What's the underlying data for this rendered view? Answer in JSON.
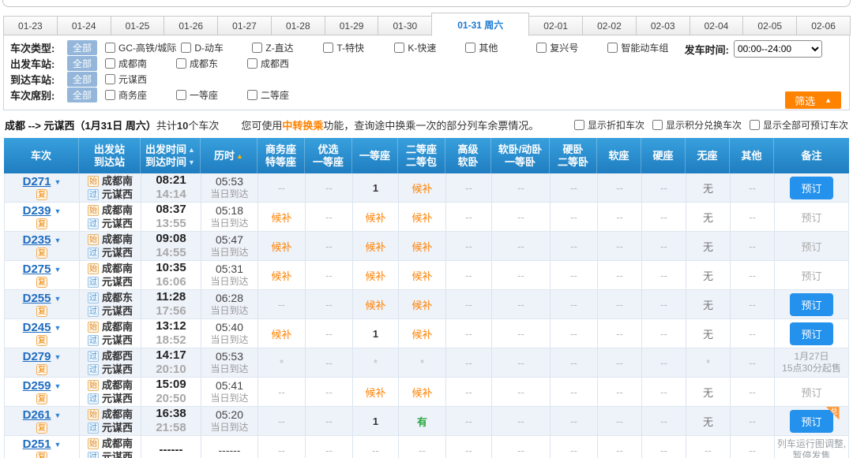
{
  "page": {
    "depart_time_label": "发车时间:",
    "depart_time_value": "00:00--24:00",
    "filter_button": "筛选",
    "filter_button_arrow": "▲"
  },
  "date_tabs": [
    "01-23",
    "01-24",
    "01-25",
    "01-26",
    "01-27",
    "01-28",
    "01-29",
    "01-30",
    "01-31 周六",
    "02-01",
    "02-02",
    "02-03",
    "02-04",
    "02-05",
    "02-06"
  ],
  "selected_tab_index": 8,
  "filters": [
    {
      "label": "车次类型:",
      "all": "全部",
      "options": [
        "GC-高铁/城际",
        "D-动车",
        "Z-直达",
        "T-特快",
        "K-快速",
        "其他",
        "复兴号",
        "智能动车组"
      ]
    },
    {
      "label": "出发车站:",
      "all": "全部",
      "options": [
        "成都南",
        "成都东",
        "成都西"
      ]
    },
    {
      "label": "到达车站:",
      "all": "全部",
      "options": [
        "元谋西"
      ]
    },
    {
      "label": "车次席别:",
      "all": "全部",
      "options": [
        "商务座",
        "一等座",
        "二等座"
      ]
    }
  ],
  "summary": {
    "from": "成都",
    "arrow": " --> ",
    "to": "元谋西",
    "date": "（1月31日 周六）",
    "count_pre": "共计",
    "count": "10",
    "count_post": "个车次",
    "tip_pre": "您可使用",
    "tip_hot": "中转换乘",
    "tip_post": "功能，查询途中换乘一次的部分列车余票情况。",
    "toggles": [
      "显示折扣车次",
      "显示积分兑换车次",
      "显示全部可预订车次"
    ]
  },
  "table": {
    "headers": [
      {
        "line1": "车次"
      },
      {
        "line1": "出发站",
        "line2": "到达站"
      },
      {
        "line1": "出发时间",
        "arrow1": "▲",
        "line2": "到达时间",
        "arrow2": "▼"
      },
      {
        "line1": "历时",
        "arrow1": "▲",
        "arrow1_active": true
      },
      {
        "line1": "商务座",
        "line2": "特等座"
      },
      {
        "line1": "优选",
        "line2": "一等座"
      },
      {
        "line1": "一等座"
      },
      {
        "line1": "二等座",
        "line2": "二等包"
      },
      {
        "line1": "高级",
        "line2": "软卧"
      },
      {
        "line1": "软卧/动卧",
        "line2": "一等卧"
      },
      {
        "line1": "硬卧",
        "line2": "二等卧"
      },
      {
        "line1": "软座"
      },
      {
        "line1": "硬座"
      },
      {
        "line1": "无座"
      },
      {
        "line1": "其他"
      },
      {
        "line1": "备注"
      }
    ],
    "rows": [
      {
        "train": "D271",
        "train_badge": "复",
        "from_badge": "始",
        "from": "成都南",
        "to_badge": "过",
        "to": "元谋西",
        "depart": "08:21",
        "arrive": "14:14",
        "duration": "05:53",
        "arrive_day": "当日到达",
        "seats": [
          "--",
          "--",
          "1",
          "候补",
          "--",
          "--",
          "--",
          "--",
          "--",
          "无",
          "--"
        ],
        "note": {
          "kind": "button",
          "label": "预订"
        }
      },
      {
        "train": "D239",
        "train_badge": "复",
        "from_badge": "始",
        "from": "成都南",
        "to_badge": "过",
        "to": "元谋西",
        "depart": "08:37",
        "arrive": "13:55",
        "duration": "05:18",
        "arrive_day": "当日到达",
        "seats": [
          "候补",
          "--",
          "候补",
          "候补",
          "--",
          "--",
          "--",
          "--",
          "--",
          "无",
          "--"
        ],
        "note": {
          "kind": "disabled",
          "label": "预订"
        }
      },
      {
        "train": "D235",
        "train_badge": "复",
        "from_badge": "始",
        "from": "成都南",
        "to_badge": "过",
        "to": "元谋西",
        "depart": "09:08",
        "arrive": "14:55",
        "duration": "05:47",
        "arrive_day": "当日到达",
        "seats": [
          "候补",
          "--",
          "候补",
          "候补",
          "--",
          "--",
          "--",
          "--",
          "--",
          "无",
          "--"
        ],
        "note": {
          "kind": "disabled",
          "label": "预订"
        }
      },
      {
        "train": "D275",
        "train_badge": "复",
        "from_badge": "始",
        "from": "成都南",
        "to_badge": "过",
        "to": "元谋西",
        "depart": "10:35",
        "arrive": "16:06",
        "duration": "05:31",
        "arrive_day": "当日到达",
        "seats": [
          "候补",
          "--",
          "候补",
          "候补",
          "--",
          "--",
          "--",
          "--",
          "--",
          "无",
          "--"
        ],
        "note": {
          "kind": "disabled",
          "label": "预订"
        }
      },
      {
        "train": "D255",
        "train_badge": "复",
        "from_badge": "过",
        "from": "成都东",
        "to_badge": "过",
        "to": "元谋西",
        "depart": "11:28",
        "arrive": "17:56",
        "duration": "06:28",
        "arrive_day": "当日到达",
        "seats": [
          "--",
          "--",
          "候补",
          "候补",
          "--",
          "--",
          "--",
          "--",
          "--",
          "无",
          "--"
        ],
        "note": {
          "kind": "button",
          "label": "预订"
        }
      },
      {
        "train": "D245",
        "train_badge": "复",
        "from_badge": "始",
        "from": "成都南",
        "to_badge": "过",
        "to": "元谋西",
        "depart": "13:12",
        "arrive": "18:52",
        "duration": "05:40",
        "arrive_day": "当日到达",
        "seats": [
          "候补",
          "--",
          "1",
          "候补",
          "--",
          "--",
          "--",
          "--",
          "--",
          "无",
          "--"
        ],
        "note": {
          "kind": "button",
          "label": "预订"
        }
      },
      {
        "train": "D279",
        "train_badge": "复",
        "from_badge": "过",
        "from": "成都西",
        "to_badge": "过",
        "to": "元谋西",
        "depart": "14:17",
        "arrive": "20:10",
        "duration": "05:53",
        "arrive_day": "当日到达",
        "seats": [
          "*",
          "--",
          "*",
          "*",
          "--",
          "--",
          "--",
          "--",
          "--",
          "*",
          "--"
        ],
        "note": {
          "kind": "text",
          "label": "1月27日\n15点30分起售"
        }
      },
      {
        "train": "D259",
        "train_badge": "复",
        "from_badge": "始",
        "from": "成都南",
        "to_badge": "过",
        "to": "元谋西",
        "depart": "15:09",
        "arrive": "20:50",
        "duration": "05:41",
        "arrive_day": "当日到达",
        "seats": [
          "--",
          "--",
          "候补",
          "候补",
          "--",
          "--",
          "--",
          "--",
          "--",
          "无",
          "--"
        ],
        "note": {
          "kind": "disabled",
          "label": "预订"
        }
      },
      {
        "train": "D261",
        "train_badge": "复",
        "from_badge": "始",
        "from": "成都南",
        "to_badge": "过",
        "to": "元谋西",
        "depart": "16:38",
        "arrive": "21:58",
        "duration": "05:20",
        "arrive_day": "当日到达",
        "seats": [
          "--",
          "--",
          "1",
          "有",
          "--",
          "--",
          "--",
          "--",
          "--",
          "无",
          "--"
        ],
        "note": {
          "kind": "button",
          "label": "预订",
          "corner": "兑"
        }
      },
      {
        "train": "D251",
        "train_badge": "复",
        "from_badge": "始",
        "from": "成都南",
        "to_badge": "过",
        "to": "元谋西",
        "depart": "------",
        "arrive": "",
        "duration": "------",
        "arrive_day": "",
        "seats": [
          "--",
          "--",
          "--",
          "--",
          "--",
          "--",
          "--",
          "--",
          "--",
          "--",
          "--"
        ],
        "note": {
          "kind": "text",
          "label": "列车运行图调整,暂停发售"
        }
      }
    ]
  }
}
